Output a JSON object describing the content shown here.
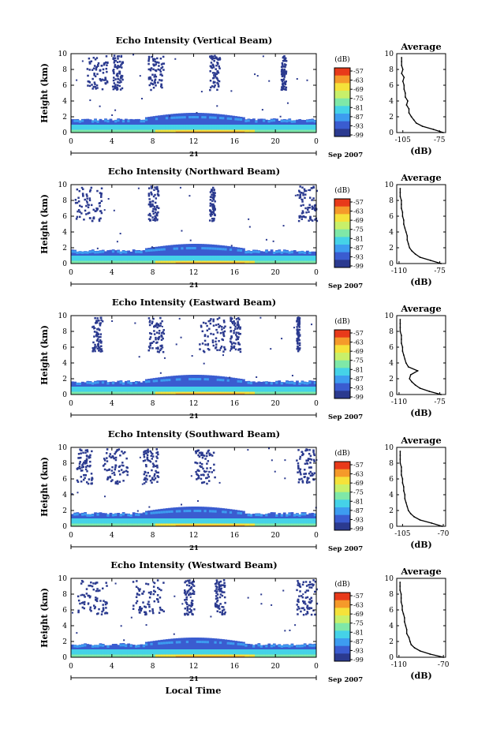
{
  "figure": {
    "xlabel": "Local Time",
    "date_day": "21",
    "date_label": "Sep 2007",
    "colorbar_unit": "(dB)",
    "colorbar_ticks": [
      "-57",
      "-63",
      "-69",
      "-75",
      "-81",
      "-87",
      "-93",
      "-99"
    ],
    "colors": [
      "#2b3a8f",
      "#3a5cd0",
      "#3d9cf0",
      "#45d2e8",
      "#7fe8a8",
      "#c8f06a",
      "#f5e23a",
      "#f59a2a",
      "#e83a1a"
    ]
  },
  "chart_data": [
    {
      "type": "heatmap",
      "title": "Echo Intensity (Vertical Beam)",
      "ylabel": "Height (km)",
      "xticks": [
        "0",
        "4",
        "8",
        "12",
        "16",
        "20",
        "0"
      ],
      "yticks": [
        "0",
        "2",
        "4",
        "6",
        "8",
        "10"
      ],
      "xlim": [
        0,
        24
      ],
      "ylim": [
        0,
        10
      ],
      "profile": {
        "title": "Average",
        "xlabel": "(dB)",
        "xlim": [
          -110,
          -70
        ],
        "xticks": [
          "-105",
          "-75"
        ],
        "heights": [
          0,
          0.4,
          0.8,
          1.2,
          1.6,
          2.0,
          2.5,
          3.0,
          3.5,
          4.0,
          4.5,
          5.0,
          5.5,
          6.0,
          6.5,
          7.0,
          7.5,
          8.0,
          8.5,
          9.0,
          9.5
        ],
        "values": [
          -72,
          -80,
          -89,
          -94,
          -96,
          -98,
          -100,
          -100,
          -102,
          -101,
          -103,
          -103,
          -104,
          -104,
          -105,
          -104,
          -106,
          -105,
          -106,
          -106,
          -106
        ]
      }
    },
    {
      "type": "heatmap",
      "title": "Echo Intensity (Northward Beam)",
      "ylabel": "Height (km)",
      "xticks": [
        "0",
        "4",
        "8",
        "12",
        "16",
        "20",
        "0"
      ],
      "yticks": [
        "0",
        "2",
        "4",
        "6",
        "8",
        "10"
      ],
      "xlim": [
        0,
        24
      ],
      "ylim": [
        0,
        10
      ],
      "profile": {
        "title": "Average",
        "xlabel": "(dB)",
        "xlim": [
          -112,
          -70
        ],
        "xticks": [
          "-110",
          "-75"
        ],
        "heights": [
          0,
          0.4,
          0.8,
          1.2,
          1.6,
          2.0,
          2.5,
          3.0,
          3.5,
          4.0,
          4.5,
          5.0,
          5.5,
          6.0,
          6.5,
          7.0,
          7.5,
          8.0,
          8.5,
          9.0,
          9.5
        ],
        "values": [
          -74,
          -83,
          -92,
          -96,
          -99,
          -101,
          -102,
          -103,
          -103,
          -104,
          -105,
          -106,
          -106,
          -107,
          -107,
          -108,
          -108,
          -108,
          -109,
          -109,
          -109
        ]
      }
    },
    {
      "type": "heatmap",
      "title": "Echo Intensity (Eastward Beam)",
      "ylabel": "Height (km)",
      "xticks": [
        "0",
        "4",
        "8",
        "12",
        "16",
        "20",
        "0"
      ],
      "yticks": [
        "0",
        "2",
        "4",
        "6",
        "8",
        "10"
      ],
      "xlim": [
        0,
        24
      ],
      "ylim": [
        0,
        10
      ],
      "profile": {
        "title": "Average",
        "xlabel": "(dB)",
        "xlim": [
          -112,
          -70
        ],
        "xticks": [
          "-110",
          "-75"
        ],
        "heights": [
          0,
          0.4,
          0.8,
          1.2,
          1.6,
          2.0,
          2.5,
          3.0,
          3.5,
          4.0,
          4.5,
          5.0,
          5.5,
          6.0,
          6.5,
          7.0,
          7.5,
          8.0,
          8.5,
          9.0,
          9.5
        ],
        "values": [
          -74,
          -84,
          -92,
          -96,
          -99,
          -101,
          -100,
          -94,
          -102,
          -104,
          -105,
          -106,
          -107,
          -107,
          -108,
          -108,
          -108,
          -109,
          -109,
          -109,
          -109
        ]
      }
    },
    {
      "type": "heatmap",
      "title": "Echo Intensity (Southward Beam)",
      "ylabel": "Height (km)",
      "xticks": [
        "0",
        "4",
        "8",
        "12",
        "16",
        "20",
        "0"
      ],
      "yticks": [
        "0",
        "2",
        "4",
        "6",
        "8",
        "10"
      ],
      "xlim": [
        0,
        24
      ],
      "ylim": [
        0,
        10
      ],
      "profile": {
        "title": "Average",
        "xlabel": "(dB)",
        "xlim": [
          -110,
          -68
        ],
        "xticks": [
          "-105",
          "-70"
        ],
        "heights": [
          0,
          0.4,
          0.8,
          1.2,
          1.6,
          2.0,
          2.5,
          3.0,
          3.5,
          4.0,
          4.5,
          5.0,
          5.5,
          6.0,
          6.5,
          7.0,
          7.5,
          8.0,
          8.5,
          9.0,
          9.5
        ],
        "values": [
          -71,
          -80,
          -90,
          -95,
          -98,
          -100,
          -101,
          -102,
          -103,
          -103,
          -104,
          -104,
          -105,
          -105,
          -106,
          -106,
          -106,
          -107,
          -107,
          -107,
          -107
        ]
      }
    },
    {
      "type": "heatmap",
      "title": "Echo Intensity (Westward Beam)",
      "ylabel": "Height (km)",
      "xticks": [
        "0",
        "4",
        "8",
        "12",
        "16",
        "20",
        "0"
      ],
      "yticks": [
        "0",
        "2",
        "4",
        "6",
        "8",
        "10"
      ],
      "xlim": [
        0,
        24
      ],
      "ylim": [
        0,
        10
      ],
      "profile": {
        "title": "Average",
        "xlabel": "(dB)",
        "xlim": [
          -112,
          -68
        ],
        "xticks": [
          "-110",
          "-70"
        ],
        "heights": [
          0,
          0.4,
          0.8,
          1.2,
          1.6,
          2.0,
          2.5,
          3.0,
          3.5,
          4.0,
          4.5,
          5.0,
          5.5,
          6.0,
          6.5,
          7.0,
          7.5,
          8.0,
          8.5,
          9.0,
          9.5
        ],
        "values": [
          -70,
          -82,
          -91,
          -96,
          -99,
          -100,
          -101,
          -103,
          -103,
          -104,
          -105,
          -105,
          -106,
          -107,
          -107,
          -108,
          -108,
          -108,
          -109,
          -109,
          -109
        ]
      }
    }
  ]
}
